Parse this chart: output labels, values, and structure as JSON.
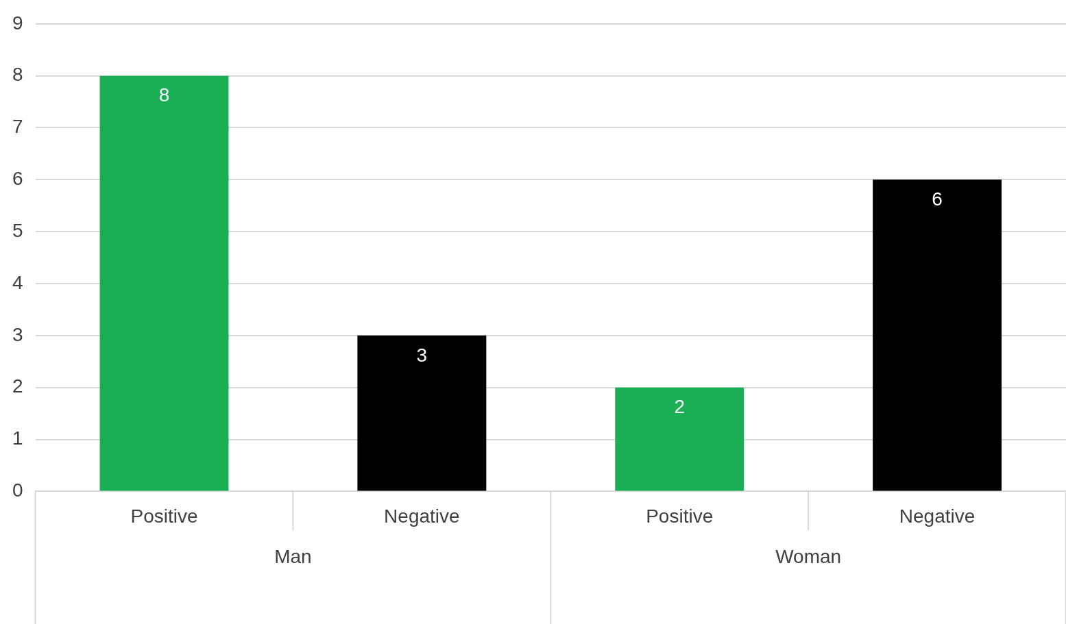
{
  "chart_data": {
    "type": "bar",
    "categories": [
      "Man",
      "Woman"
    ],
    "series": [
      {
        "name": "Positive",
        "color": "#1aaf54",
        "values": [
          8,
          2
        ]
      },
      {
        "name": "Negative",
        "color": "#000000",
        "values": [
          3,
          6
        ]
      }
    ],
    "ylim": [
      0,
      9
    ],
    "yticks": [
      0,
      1,
      2,
      3,
      4,
      5,
      6,
      7,
      8,
      9
    ],
    "grid": "y",
    "data_labels": true
  }
}
